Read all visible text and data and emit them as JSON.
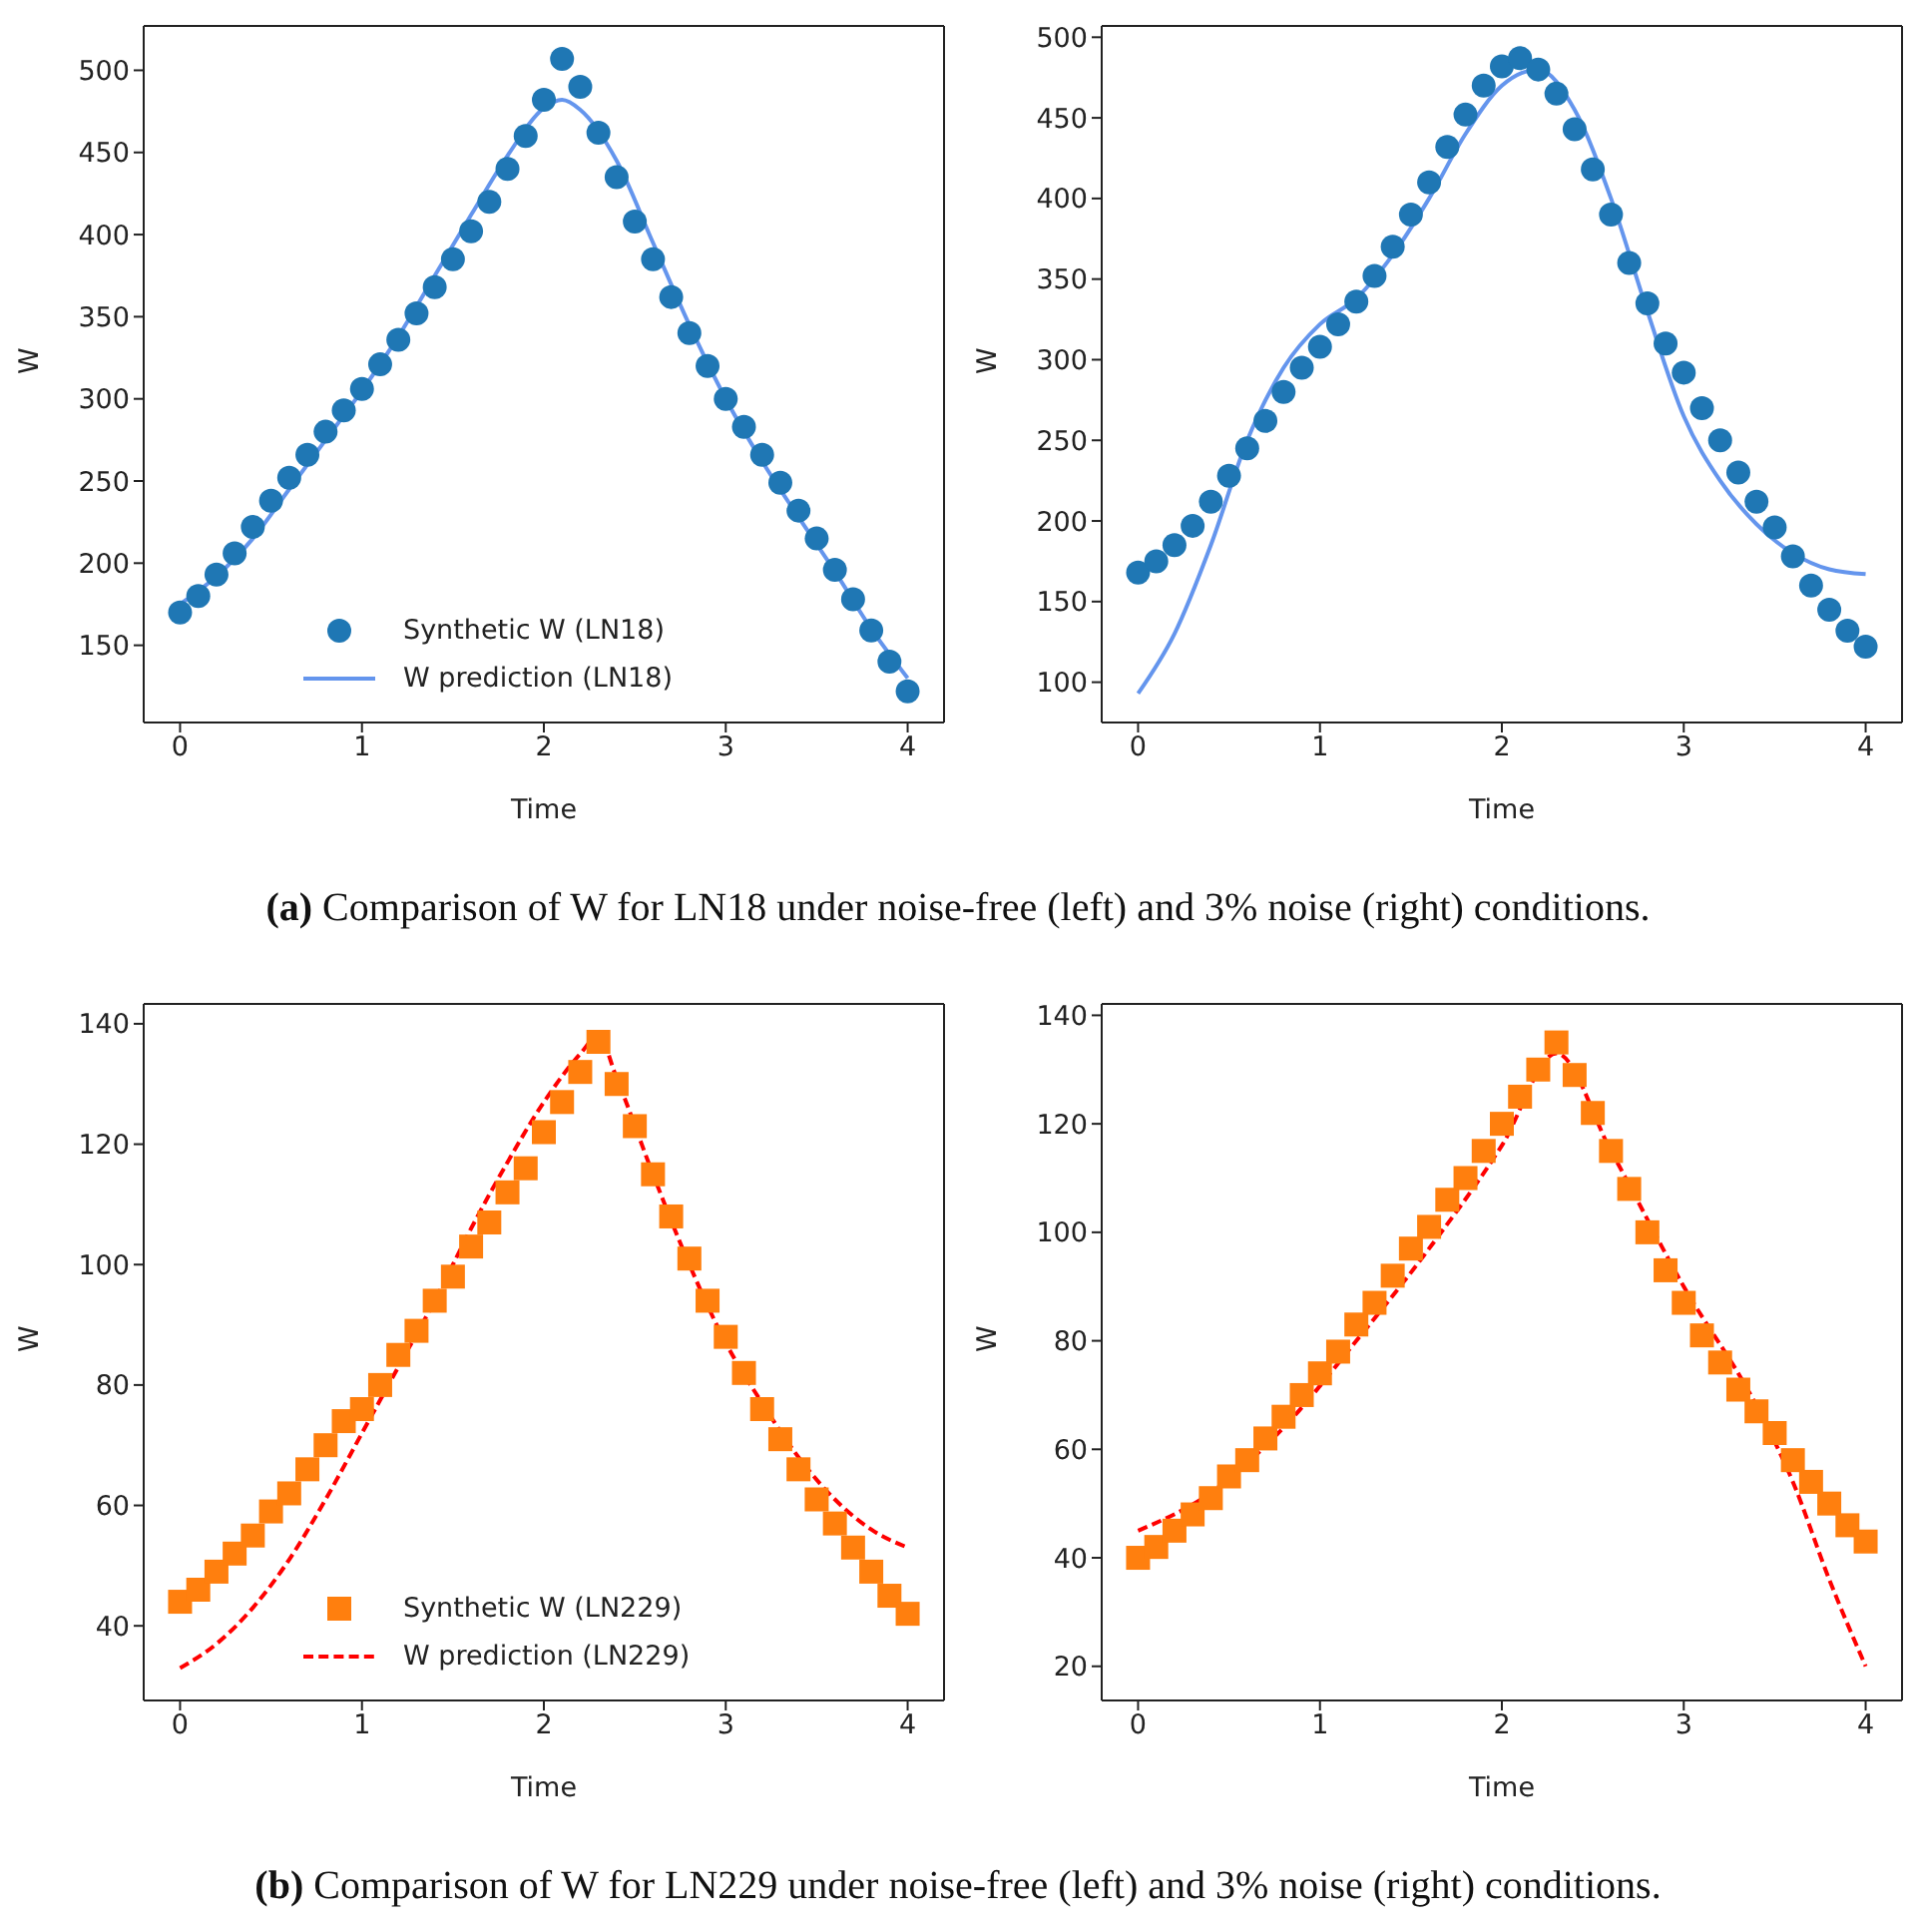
{
  "chart_data": [
    {
      "type": "scatter",
      "xlabel": "Time",
      "ylabel": "W",
      "xlim": [
        -0.2,
        4.2
      ],
      "xticks": [
        0,
        1,
        2,
        3,
        4
      ],
      "ylim": [
        103,
        527
      ],
      "yticks": [
        150,
        200,
        250,
        300,
        350,
        400,
        450,
        500
      ],
      "legend": "bottom",
      "grid": false,
      "annotations": [
        "(a) Comparison of W for LN18 under noise-free (left) and 3% noise (right) conditions."
      ],
      "series": [
        {
          "name": "Synthetic W  (LN18)",
          "type": "scatter",
          "marker": "circle",
          "color": "#1f77b4",
          "x": [
            0,
            0.1,
            0.2,
            0.3,
            0.4,
            0.5,
            0.6,
            0.7,
            0.8,
            0.9,
            1.0,
            1.1,
            1.2,
            1.3,
            1.4,
            1.5,
            1.6,
            1.7,
            1.8,
            1.9,
            2.0,
            2.1,
            2.2,
            2.3,
            2.4,
            2.5,
            2.6,
            2.7,
            2.8,
            2.9,
            3.0,
            3.1,
            3.2,
            3.3,
            3.4,
            3.5,
            3.6,
            3.7,
            3.8,
            3.9,
            4.0
          ],
          "values": [
            170,
            180,
            193,
            206,
            222,
            238,
            252,
            266,
            280,
            293,
            306,
            321,
            336,
            352,
            368,
            385,
            402,
            420,
            440,
            460,
            482,
            507,
            490,
            462,
            435,
            408,
            385,
            362,
            340,
            320,
            300,
            283,
            266,
            249,
            232,
            215,
            196,
            178,
            159,
            140,
            122
          ]
        },
        {
          "name": "W prediction (LN18)",
          "type": "line",
          "line_style": "solid",
          "color": "#6495ed",
          "x": [
            0,
            0.2,
            0.4,
            0.6,
            0.8,
            1.0,
            1.2,
            1.4,
            1.6,
            1.8,
            2.0,
            2.1,
            2.2,
            2.4,
            2.6,
            2.8,
            3.0,
            3.2,
            3.4,
            3.6,
            3.8,
            4.0
          ],
          "values": [
            175,
            192,
            215,
            245,
            275,
            305,
            338,
            375,
            412,
            448,
            477,
            482,
            476,
            445,
            395,
            345,
            300,
            262,
            228,
            195,
            160,
            130
          ]
        }
      ]
    },
    {
      "type": "scatter",
      "xlabel": "Time",
      "ylabel": "W",
      "xlim": [
        -0.2,
        4.2
      ],
      "xticks": [
        0,
        1,
        2,
        3,
        4
      ],
      "ylim": [
        75,
        507
      ],
      "yticks": [
        100,
        150,
        200,
        250,
        300,
        350,
        400,
        450,
        500
      ],
      "legend": false,
      "grid": false,
      "series": [
        {
          "type": "scatter",
          "marker": "circle",
          "color": "#1f77b4",
          "x": [
            0,
            0.1,
            0.2,
            0.3,
            0.4,
            0.5,
            0.6,
            0.7,
            0.8,
            0.9,
            1.0,
            1.1,
            1.2,
            1.3,
            1.4,
            1.5,
            1.6,
            1.7,
            1.8,
            1.9,
            2.0,
            2.1,
            2.2,
            2.3,
            2.4,
            2.5,
            2.6,
            2.7,
            2.8,
            2.9,
            3.0,
            3.1,
            3.2,
            3.3,
            3.4,
            3.5,
            3.6,
            3.7,
            3.8,
            3.9,
            4.0
          ],
          "values": [
            168,
            175,
            185,
            197,
            212,
            228,
            245,
            262,
            280,
            295,
            308,
            322,
            336,
            352,
            370,
            390,
            410,
            432,
            452,
            470,
            482,
            487,
            480,
            465,
            443,
            418,
            390,
            360,
            335,
            310,
            292,
            270,
            250,
            230,
            212,
            196,
            178,
            160,
            145,
            132,
            122
          ]
        },
        {
          "type": "line",
          "line_style": "solid",
          "color": "#6495ed",
          "x": [
            0,
            0.2,
            0.4,
            0.6,
            0.8,
            1.0,
            1.2,
            1.4,
            1.6,
            1.8,
            2.0,
            2.2,
            2.4,
            2.6,
            2.8,
            3.0,
            3.2,
            3.4,
            3.6,
            3.8,
            4.0
          ],
          "values": [
            93,
            130,
            185,
            250,
            295,
            322,
            338,
            365,
            400,
            440,
            470,
            480,
            455,
            400,
            330,
            265,
            225,
            198,
            180,
            170,
            167
          ]
        }
      ]
    },
    {
      "type": "scatter",
      "xlabel": "Time",
      "ylabel": "W",
      "xlim": [
        -0.2,
        4.2
      ],
      "xticks": [
        0,
        1,
        2,
        3,
        4
      ],
      "ylim": [
        27.6,
        143.3
      ],
      "yticks": [
        40,
        60,
        80,
        100,
        120,
        140
      ],
      "legend": "bottom",
      "grid": false,
      "annotations": [
        "(b) Comparison of W for LN229 under noise-free (left) and 3% noise (right) conditions."
      ],
      "series": [
        {
          "name": "Synthetic W (LN229)",
          "type": "scatter",
          "marker": "square",
          "color": "#ff7f0e",
          "x": [
            0,
            0.1,
            0.2,
            0.3,
            0.4,
            0.5,
            0.6,
            0.7,
            0.8,
            0.9,
            1.0,
            1.1,
            1.2,
            1.3,
            1.4,
            1.5,
            1.6,
            1.7,
            1.8,
            1.9,
            2.0,
            2.1,
            2.2,
            2.3,
            2.4,
            2.5,
            2.6,
            2.7,
            2.8,
            2.9,
            3.0,
            3.1,
            3.2,
            3.3,
            3.4,
            3.5,
            3.6,
            3.7,
            3.8,
            3.9,
            4.0
          ],
          "values": [
            44,
            46,
            49,
            52,
            55,
            59,
            62,
            66,
            70,
            74,
            76,
            80,
            85,
            89,
            94,
            98,
            103,
            107,
            112,
            116,
            122,
            127,
            132,
            137,
            130,
            123,
            115,
            108,
            101,
            94,
            88,
            82,
            76,
            71,
            66,
            61,
            57,
            53,
            49,
            45,
            42
          ]
        },
        {
          "name": "W prediction (LN229)",
          "type": "line",
          "line_style": "dashed",
          "color": "#ff0000",
          "x": [
            0,
            0.2,
            0.4,
            0.6,
            0.8,
            1.0,
            1.2,
            1.4,
            1.6,
            1.8,
            2.0,
            2.2,
            2.3,
            2.4,
            2.6,
            2.8,
            3.0,
            3.2,
            3.4,
            3.6,
            3.8,
            4.0
          ],
          "values": [
            33,
            37,
            43,
            51,
            61,
            72,
            83,
            94,
            106,
            117,
            127,
            135,
            138,
            131,
            115,
            100,
            87,
            77,
            68,
            61,
            56,
            53
          ]
        }
      ]
    },
    {
      "type": "scatter",
      "xlabel": "Time",
      "ylabel": "W",
      "xlim": [
        -0.2,
        4.2
      ],
      "xticks": [
        0,
        1,
        2,
        3,
        4
      ],
      "ylim": [
        13.7,
        142.1
      ],
      "yticks": [
        20,
        40,
        60,
        80,
        100,
        120,
        140
      ],
      "legend": false,
      "grid": false,
      "series": [
        {
          "type": "scatter",
          "marker": "square",
          "color": "#ff7f0e",
          "x": [
            0,
            0.1,
            0.2,
            0.3,
            0.4,
            0.5,
            0.6,
            0.7,
            0.8,
            0.9,
            1.0,
            1.1,
            1.2,
            1.3,
            1.4,
            1.5,
            1.6,
            1.7,
            1.8,
            1.9,
            2.0,
            2.1,
            2.2,
            2.3,
            2.4,
            2.5,
            2.6,
            2.7,
            2.8,
            2.9,
            3.0,
            3.1,
            3.2,
            3.3,
            3.4,
            3.5,
            3.6,
            3.7,
            3.8,
            3.9,
            4.0
          ],
          "values": [
            40,
            42,
            45,
            48,
            51,
            55,
            58,
            62,
            66,
            70,
            74,
            78,
            83,
            87,
            92,
            97,
            101,
            106,
            110,
            115,
            120,
            125,
            130,
            135,
            129,
            122,
            115,
            108,
            100,
            93,
            87,
            81,
            76,
            71,
            67,
            63,
            58,
            54,
            50,
            46,
            43
          ]
        },
        {
          "type": "line",
          "line_style": "dashed",
          "color": "#ff0000",
          "x": [
            0,
            0.4,
            0.8,
            1.2,
            1.6,
            2.0,
            2.3,
            2.6,
            3.0,
            3.4,
            3.6,
            3.8,
            4.0
          ],
          "values": [
            45,
            52,
            64,
            80,
            97,
            116,
            133,
            115,
            90,
            68,
            54,
            36,
            20
          ]
        }
      ]
    }
  ]
}
